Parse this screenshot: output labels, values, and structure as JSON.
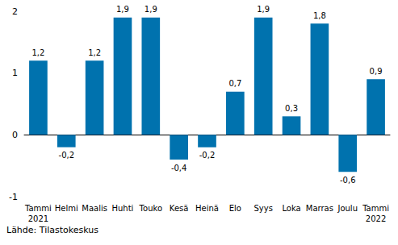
{
  "chart_data": {
    "type": "bar",
    "categories": [
      "Tammi\n2021",
      "Helmi",
      "Maalis",
      "Huhti",
      "Touko",
      "Kesä",
      "Heinä",
      "Elo",
      "Syys",
      "Loka",
      "Marras",
      "Joulu",
      "Tammi\n2022"
    ],
    "values": [
      1.2,
      -0.2,
      1.2,
      1.9,
      1.9,
      -0.4,
      -0.2,
      0.7,
      1.9,
      0.3,
      1.8,
      -0.6,
      0.9
    ],
    "value_labels": [
      "1,2",
      "-0,2",
      "1,2",
      "1,9",
      "1,9",
      "-0,4",
      "-0,2",
      "0,7",
      "1,9",
      "0,3",
      "1,8",
      "-0,6",
      "0,9"
    ],
    "color": "#0072ae",
    "ylim": [
      -1,
      2
    ],
    "yticks": [
      -1,
      0,
      1,
      2
    ],
    "grid": false,
    "data_labels": true,
    "source": "Lähde: Tilastokeskus"
  }
}
